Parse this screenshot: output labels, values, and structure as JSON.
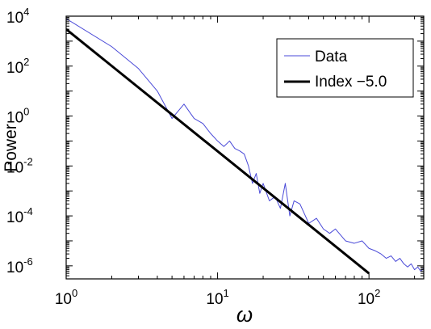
{
  "chart_data": {
    "type": "line",
    "xscale": "log",
    "yscale": "log",
    "xlim": [
      1,
      230
    ],
    "ylim": [
      3e-07,
      10000
    ],
    "xlabel": "ω",
    "ylabel": "Power",
    "x_ticks": [
      {
        "value": 1,
        "base": "10",
        "exp": "0"
      },
      {
        "value": 10,
        "base": "10",
        "exp": "1"
      },
      {
        "value": 100,
        "base": "10",
        "exp": "2"
      }
    ],
    "y_ticks": [
      {
        "value": 1e-06,
        "base": "10",
        "exp": "-6"
      },
      {
        "value": 0.0001,
        "base": "10",
        "exp": "-4"
      },
      {
        "value": 0.01,
        "base": "10",
        "exp": "-2"
      },
      {
        "value": 1,
        "base": "10",
        "exp": "0"
      },
      {
        "value": 100,
        "base": "10",
        "exp": "2"
      },
      {
        "value": 10000,
        "base": "10",
        "exp": "4"
      }
    ],
    "grid": false,
    "legend_position": "top-right",
    "series": [
      {
        "name": "Data",
        "color": "#4a4ad8",
        "x": [
          1,
          2,
          3,
          4,
          5,
          6,
          7,
          8,
          9,
          10,
          11,
          12,
          13,
          14,
          15,
          16,
          17,
          18,
          19,
          20,
          22,
          24,
          26,
          28,
          30,
          32,
          35,
          38,
          40,
          45,
          50,
          55,
          60,
          70,
          80,
          90,
          100,
          110,
          120,
          130,
          140,
          150,
          160,
          170,
          180,
          190,
          200,
          210,
          220,
          230
        ],
        "y": [
          8000,
          600,
          80,
          10,
          0.8,
          3,
          0.8,
          0.5,
          0.2,
          0.1,
          0.06,
          0.1,
          0.05,
          0.04,
          0.03,
          0.01,
          0.002,
          0.005,
          0.0008,
          0.002,
          0.0004,
          0.0006,
          0.0002,
          0.002,
          0.0001,
          0.0004,
          0.0003,
          0.0001,
          5e-05,
          8e-05,
          3e-05,
          2e-05,
          3e-05,
          1e-05,
          8e-06,
          1e-05,
          5e-06,
          4e-06,
          3e-06,
          2e-06,
          2.5e-06,
          1.5e-06,
          2e-06,
          1.2e-06,
          9e-07,
          1.2e-06,
          7e-07,
          9e-07,
          6e-07,
          8e-07
        ]
      },
      {
        "name": "Index −5.0",
        "color": "#000000",
        "x": [
          1,
          100
        ],
        "y": [
          3000,
          5e-07
        ]
      }
    ]
  }
}
